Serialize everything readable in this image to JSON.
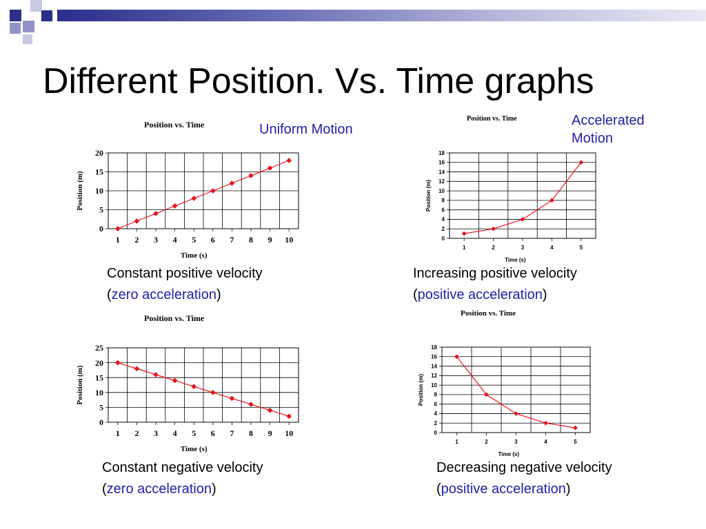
{
  "slide": {
    "title": "Different Position. Vs. Time graphs",
    "accent_color": "#1f1fa8",
    "deco_colors": {
      "dark": "#2b2e8c",
      "medium": "#9093c7",
      "light": "#c7c9e3"
    }
  },
  "tags": {
    "uniform": "Uniform Motion",
    "accelerated_line1": "Accelerated",
    "accelerated_line2": "Motion"
  },
  "captions": [
    {
      "line1": "Constant positive velocity",
      "open": "(",
      "accent": "zero acceleration",
      "close": ")"
    },
    {
      "line1": "Increasing positive velocity",
      "open": "(",
      "accent": "positive acceleration",
      "close": ")"
    },
    {
      "line1": "Constant negative velocity",
      "open": "(",
      "accent": "zero acceleration",
      "close": ")"
    },
    {
      "line1": "Decreasing negative velocity",
      "open": "(",
      "accent": "positive acceleration",
      "close": ")"
    }
  ],
  "chart_data": [
    {
      "type": "line",
      "title": "Position vs. Time",
      "xlabel": "Time (s)",
      "ylabel": "Position (m)",
      "x": [
        1,
        2,
        3,
        4,
        5,
        6,
        7,
        8,
        9,
        10
      ],
      "series": [
        {
          "values": [
            0,
            2,
            4,
            6,
            8,
            10,
            12,
            14,
            16,
            18
          ]
        }
      ],
      "xlim": [
        0.5,
        10.5
      ],
      "ylim": [
        0,
        20
      ],
      "yticks": [
        0,
        5,
        10,
        15,
        20
      ],
      "grid": true,
      "color": "#e8141c"
    },
    {
      "type": "line",
      "title": "Position vs. Time",
      "xlabel": "Time (s)",
      "ylabel": "Position (m)",
      "x": [
        1,
        2,
        3,
        4,
        5
      ],
      "series": [
        {
          "values": [
            1,
            2,
            4,
            8,
            16
          ]
        }
      ],
      "xlim": [
        0.5,
        5.5
      ],
      "ylim": [
        0,
        18
      ],
      "yticks": [
        0,
        2,
        4,
        6,
        8,
        10,
        12,
        14,
        16,
        18
      ],
      "grid": true,
      "color": "#e8141c"
    },
    {
      "type": "line",
      "title": "Position vs. Time",
      "xlabel": "Time (s)",
      "ylabel": "Position (m)",
      "x": [
        1,
        2,
        3,
        4,
        5,
        6,
        7,
        8,
        9,
        10
      ],
      "series": [
        {
          "values": [
            20,
            18,
            16,
            14,
            12,
            10,
            8,
            6,
            4,
            2
          ]
        }
      ],
      "xlim": [
        0.5,
        10.5
      ],
      "ylim": [
        0,
        25
      ],
      "yticks": [
        0,
        5,
        10,
        15,
        20,
        25
      ],
      "grid": true,
      "color": "#e8141c"
    },
    {
      "type": "line",
      "title": "Position vs. Time",
      "xlabel": "Time (s)",
      "ylabel": "Position (m)",
      "x": [
        1,
        2,
        3,
        4,
        5
      ],
      "series": [
        {
          "values": [
            16,
            8,
            4,
            2,
            1
          ]
        }
      ],
      "xlim": [
        0.5,
        5.5
      ],
      "ylim": [
        0,
        18
      ],
      "yticks": [
        0,
        2,
        4,
        6,
        8,
        10,
        12,
        14,
        16,
        18
      ],
      "grid": true,
      "color": "#e8141c"
    }
  ]
}
